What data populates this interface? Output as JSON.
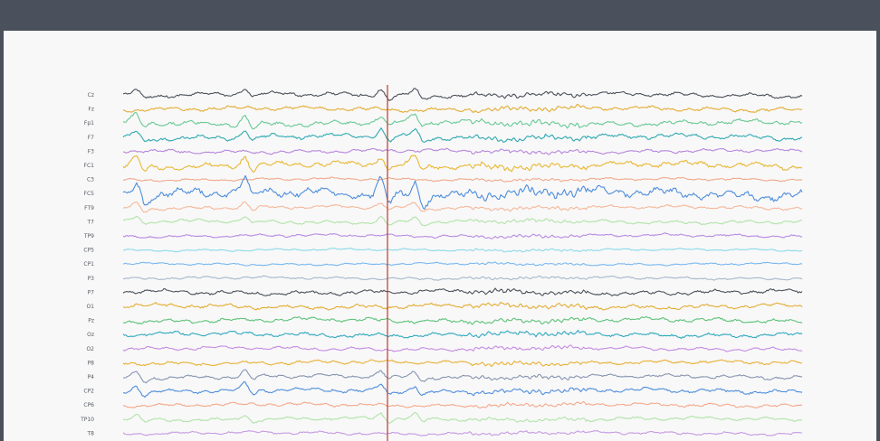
{
  "chart_data": {
    "type": "line",
    "title": "",
    "xlabel": "",
    "ylabel": "",
    "grid": false,
    "legend": "none",
    "marker_present": true,
    "channels": [
      {
        "name": "Cz",
        "color": "#3a3f4a",
        "amp": 1.0,
        "blinks": true
      },
      {
        "name": "Fz",
        "color": "#e0a41e",
        "amp": 1.0,
        "blinks": false
      },
      {
        "name": "Fp1",
        "color": "#5ac48a",
        "amp": 1.2,
        "blinks": true
      },
      {
        "name": "F7",
        "color": "#1aa0a8",
        "amp": 1.2,
        "blinks": true
      },
      {
        "name": "F3",
        "color": "#b07ad8",
        "amp": 0.8,
        "blinks": false
      },
      {
        "name": "FC1",
        "color": "#e6b020",
        "amp": 1.4,
        "blinks": true
      },
      {
        "name": "C3",
        "color": "#f0a080",
        "amp": 0.6,
        "blinks": false
      },
      {
        "name": "FC5",
        "color": "#3c82d8",
        "amp": 2.2,
        "blinks": true
      },
      {
        "name": "FT9",
        "color": "#f4b090",
        "amp": 0.8,
        "blinks": true
      },
      {
        "name": "T7",
        "color": "#a8e0a0",
        "amp": 0.8,
        "blinks": true
      },
      {
        "name": "TP9",
        "color": "#b080e0",
        "amp": 0.7,
        "blinks": false
      },
      {
        "name": "CP5",
        "color": "#7ed6e8",
        "amp": 0.5,
        "blinks": false
      },
      {
        "name": "CP1",
        "color": "#6ab0f0",
        "amp": 0.5,
        "blinks": false
      },
      {
        "name": "P3",
        "color": "#9cb0c8",
        "amp": 0.6,
        "blinks": false
      },
      {
        "name": "P7",
        "color": "#3a3f4a",
        "amp": 1.0,
        "blinks": false
      },
      {
        "name": "O1",
        "color": "#e0a41e",
        "amp": 1.0,
        "blinks": false
      },
      {
        "name": "Pz",
        "color": "#4cbc6c",
        "amp": 1.0,
        "blinks": false
      },
      {
        "name": "Oz",
        "color": "#1aa0b8",
        "amp": 1.0,
        "blinks": false
      },
      {
        "name": "O2",
        "color": "#c080e0",
        "amp": 0.8,
        "blinks": false
      },
      {
        "name": "P8",
        "color": "#e6a820",
        "amp": 0.9,
        "blinks": false
      },
      {
        "name": "P4",
        "color": "#7a8aa8",
        "amp": 0.9,
        "blinks": true
      },
      {
        "name": "CP2",
        "color": "#3c82d8",
        "amp": 1.0,
        "blinks": true
      },
      {
        "name": "CP6",
        "color": "#f4a080",
        "amp": 0.8,
        "blinks": false
      },
      {
        "name": "TP10",
        "color": "#a8e0a0",
        "amp": 0.8,
        "blinks": true
      },
      {
        "name": "T8",
        "color": "#c090e0",
        "amp": 0.7,
        "blinks": false
      }
    ],
    "blink_positions": [
      0.02,
      0.18,
      0.38,
      0.43
    ],
    "marker_color": "#c0392b"
  }
}
